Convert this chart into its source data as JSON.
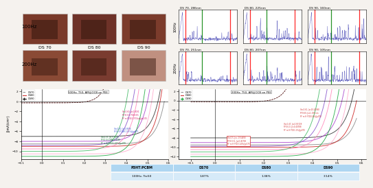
{
  "profile_titles_100hz": [
    "DS 70, 286nm",
    "DS 80, 225nm",
    "DS 90, 160nm"
  ],
  "profile_titles_200hz": [
    "DS 70, 251nm",
    "DS 80, 207nm",
    "DS 90, 105nm"
  ],
  "jv_title_100hz": "100Hz, T50, AM@OCB on PEE",
  "jv_title_200hz": "200Hz, T50, AM@OCB on PEE",
  "photo_labels_row1": [
    "DS 70",
    "DS 80",
    "DS 90"
  ],
  "table_headers": [
    "P3HT:PCBM",
    "DS70",
    "DS80",
    "DS90"
  ],
  "table_row1": [
    "100Hz, Trx50",
    "1.87%",
    "1.38%",
    "3.14%"
  ],
  "table_header_bg": "#aed6f1",
  "table_row_bg": "#d6eaf8",
  "bg_color": "#f0ece8"
}
